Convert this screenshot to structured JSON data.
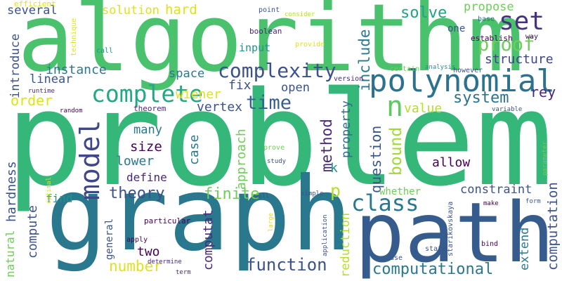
{
  "words": [
    {
      "text": "problem"
    },
    {
      "text": "algorithm"
    },
    {
      "text": "graph"
    },
    {
      "text": "path"
    },
    {
      "text": "polynomial"
    },
    {
      "text": "complete"
    },
    {
      "text": "set"
    },
    {
      "text": "n"
    },
    {
      "text": "model"
    },
    {
      "text": "complexity"
    },
    {
      "text": "time"
    },
    {
      "text": "proof"
    },
    {
      "text": "propose"
    },
    {
      "text": "structure"
    },
    {
      "text": "system"
    },
    {
      "text": "rey"
    },
    {
      "text": "value"
    },
    {
      "text": "bound"
    },
    {
      "text": "question"
    },
    {
      "text": "include"
    },
    {
      "text": "solve"
    },
    {
      "text": "one"
    },
    {
      "text": "base"
    },
    {
      "text": "way"
    },
    {
      "text": "establish"
    },
    {
      "text": "consider"
    },
    {
      "text": "point"
    },
    {
      "text": "boolean"
    },
    {
      "text": "provide"
    },
    {
      "text": "input"
    },
    {
      "text": "version"
    },
    {
      "text": "certain"
    },
    {
      "text": "analysis"
    },
    {
      "text": "however"
    },
    {
      "text": "solution"
    },
    {
      "text": "hard"
    },
    {
      "text": "several"
    },
    {
      "text": "efficient"
    },
    {
      "text": "technique"
    },
    {
      "text": "call"
    },
    {
      "text": "linear"
    },
    {
      "text": "instance"
    },
    {
      "text": "introduce"
    },
    {
      "text": "runtime"
    },
    {
      "text": "order"
    },
    {
      "text": "random"
    },
    {
      "text": "theorem"
    },
    {
      "text": "space"
    },
    {
      "text": "wiener"
    },
    {
      "text": "fix"
    },
    {
      "text": "vertex"
    },
    {
      "text": "open"
    },
    {
      "text": "method"
    },
    {
      "text": "property"
    },
    {
      "text": "k"
    },
    {
      "text": "approach"
    },
    {
      "text": "many"
    },
    {
      "text": "size"
    },
    {
      "text": "lower"
    },
    {
      "text": "case"
    },
    {
      "text": "define"
    },
    {
      "text": "theory"
    },
    {
      "text": "allow"
    },
    {
      "text": "finite"
    },
    {
      "text": "p"
    },
    {
      "text": "class"
    },
    {
      "text": "whether"
    },
    {
      "text": "constraint"
    },
    {
      "text": "find"
    },
    {
      "text": "compute"
    },
    {
      "text": "hardness"
    },
    {
      "text": "natural"
    },
    {
      "text": "optimal"
    },
    {
      "text": "general"
    },
    {
      "text": "particular"
    },
    {
      "text": "apply"
    },
    {
      "text": "two"
    },
    {
      "text": "number"
    },
    {
      "text": "determine"
    },
    {
      "text": "term"
    },
    {
      "text": "computat"
    },
    {
      "text": "function"
    },
    {
      "text": "reduction"
    },
    {
      "text": "application"
    },
    {
      "text": "large"
    },
    {
      "text": "simple"
    },
    {
      "text": "well"
    },
    {
      "text": "prove"
    },
    {
      "text": "study"
    },
    {
      "text": "computational"
    },
    {
      "text": "use"
    },
    {
      "text": "state"
    },
    {
      "text": "bind"
    },
    {
      "text": "make"
    },
    {
      "text": "form"
    },
    {
      "text": "starikovskaya"
    },
    {
      "text": "extend"
    },
    {
      "text": "computation"
    },
    {
      "text": "parameter"
    },
    {
      "text": "variable"
    }
  ]
}
